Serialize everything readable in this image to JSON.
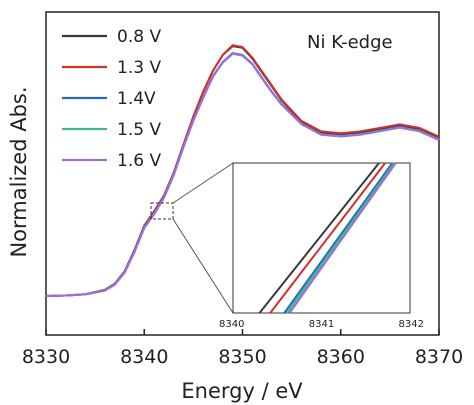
{
  "chart_data": {
    "type": "line",
    "title": "",
    "annotation": "Ni K-edge",
    "xlabel": "Energy / eV",
    "ylabel": "Normalized Abs.",
    "xlim": [
      8330,
      8370
    ],
    "x_ticks": [
      8330,
      8340,
      8350,
      8360,
      8370
    ],
    "y_ticks_labeled": false,
    "grid": false,
    "legend_position": "top-left",
    "series": [
      {
        "name": "0.8 V",
        "color": "#3a3a3a",
        "x": [
          8330,
          8332,
          8334,
          8336,
          8337,
          8338,
          8339,
          8340,
          8341,
          8342,
          8343,
          8344,
          8345,
          8346,
          8347,
          8348,
          8349,
          8350,
          8351,
          8352,
          8353,
          8354,
          8356,
          8358,
          8360,
          8362,
          8364,
          8366,
          8368,
          8370
        ],
        "y": [
          0.0,
          0.003,
          0.01,
          0.035,
          0.07,
          0.14,
          0.26,
          0.4,
          0.48,
          0.57,
          0.7,
          0.86,
          1.02,
          1.16,
          1.28,
          1.37,
          1.42,
          1.41,
          1.35,
          1.27,
          1.19,
          1.11,
          0.99,
          0.93,
          0.92,
          0.93,
          0.95,
          0.97,
          0.95,
          0.9
        ]
      },
      {
        "name": "1.3 V",
        "color": "#d32f2f",
        "x": [
          8330,
          8332,
          8334,
          8336,
          8337,
          8338,
          8339,
          8340,
          8341,
          8342,
          8343,
          8344,
          8345,
          8346,
          8347,
          8348,
          8349,
          8350,
          8351,
          8352,
          8353,
          8354,
          8356,
          8358,
          8360,
          8362,
          8364,
          8366,
          8368,
          8370
        ],
        "y": [
          0.0,
          0.003,
          0.01,
          0.034,
          0.069,
          0.139,
          0.258,
          0.397,
          0.475,
          0.567,
          0.697,
          0.86,
          1.02,
          1.16,
          1.28,
          1.37,
          1.425,
          1.415,
          1.355,
          1.275,
          1.195,
          1.115,
          0.995,
          0.935,
          0.925,
          0.935,
          0.955,
          0.975,
          0.955,
          0.905
        ]
      },
      {
        "name": "1.4V",
        "color": "#1f6fb5",
        "x": [
          8330,
          8332,
          8334,
          8336,
          8337,
          8338,
          8339,
          8340,
          8341,
          8342,
          8343,
          8344,
          8345,
          8346,
          8347,
          8348,
          8349,
          8350,
          8351,
          8352,
          8353,
          8354,
          8356,
          8358,
          8360,
          8362,
          8364,
          8366,
          8368,
          8370
        ],
        "y": [
          0.0,
          0.003,
          0.009,
          0.032,
          0.066,
          0.135,
          0.252,
          0.39,
          0.468,
          0.56,
          0.69,
          0.85,
          1.0,
          1.13,
          1.25,
          1.33,
          1.38,
          1.37,
          1.32,
          1.24,
          1.16,
          1.09,
          0.98,
          0.92,
          0.91,
          0.92,
          0.94,
          0.96,
          0.94,
          0.89
        ]
      },
      {
        "name": "1.5 V",
        "color": "#3db88a",
        "x": [
          8330,
          8332,
          8334,
          8336,
          8337,
          8338,
          8339,
          8340,
          8341,
          8342,
          8343,
          8344,
          8345,
          8346,
          8347,
          8348,
          8349,
          8350,
          8351,
          8352,
          8353,
          8354,
          8356,
          8358,
          8360,
          8362,
          8364,
          8366,
          8368,
          8370
        ],
        "y": [
          0.0,
          0.003,
          0.009,
          0.031,
          0.065,
          0.133,
          0.25,
          0.388,
          0.466,
          0.558,
          0.688,
          0.848,
          0.998,
          1.128,
          1.248,
          1.328,
          1.378,
          1.368,
          1.318,
          1.238,
          1.158,
          1.088,
          0.978,
          0.918,
          0.908,
          0.918,
          0.938,
          0.958,
          0.938,
          0.888
        ]
      },
      {
        "name": "1.6 V",
        "color": "#a46be0",
        "x": [
          8330,
          8332,
          8334,
          8336,
          8337,
          8338,
          8339,
          8340,
          8341,
          8342,
          8343,
          8344,
          8345,
          8346,
          8347,
          8348,
          8349,
          8350,
          8351,
          8352,
          8353,
          8354,
          8356,
          8358,
          8360,
          8362,
          8364,
          8366,
          8368,
          8370
        ],
        "y": [
          0.0,
          0.003,
          0.009,
          0.03,
          0.064,
          0.132,
          0.248,
          0.386,
          0.464,
          0.556,
          0.686,
          0.846,
          0.996,
          1.126,
          1.246,
          1.326,
          1.376,
          1.366,
          1.316,
          1.236,
          1.156,
          1.086,
          0.976,
          0.916,
          0.906,
          0.916,
          0.936,
          0.956,
          0.936,
          0.886
        ]
      }
    ],
    "inset": {
      "type": "line",
      "xlim": [
        8340,
        8342
      ],
      "x_ticks": [
        8340,
        8341,
        8342
      ],
      "series": [
        {
          "name": "0.8 V",
          "color": "#3a3a3a",
          "x": [
            8340.3,
            8341.65
          ],
          "y": [
            0.0,
            1.0
          ]
        },
        {
          "name": "1.3 V",
          "color": "#d32f2f",
          "x": [
            8340.42,
            8341.72
          ],
          "y": [
            0.0,
            1.0
          ]
        },
        {
          "name": "1.4V",
          "color": "#1f6fb5",
          "x": [
            8340.58,
            8341.8
          ],
          "y": [
            0.0,
            1.0
          ]
        },
        {
          "name": "1.5 V",
          "color": "#3db88a",
          "x": [
            8340.61,
            8341.82
          ],
          "y": [
            0.0,
            1.0
          ]
        },
        {
          "name": "1.6 V",
          "color": "#a46be0",
          "x": [
            8340.64,
            8341.84
          ],
          "y": [
            0.0,
            1.0
          ]
        }
      ]
    }
  }
}
